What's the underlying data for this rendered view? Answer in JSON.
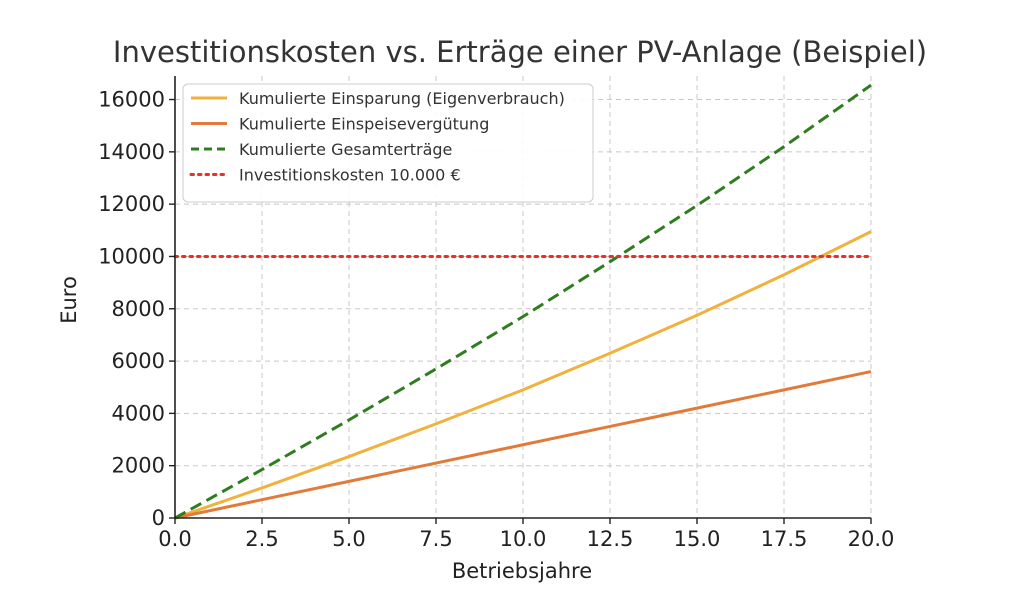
{
  "chart_data": {
    "type": "line",
    "title": "Investitionskosten vs. Erträge einer PV-Anlage (Beispiel)",
    "xlabel": "Betriebsjahre",
    "ylabel": "Euro",
    "xlim": [
      0,
      20
    ],
    "ylim": [
      0,
      16900
    ],
    "xticks": [
      0,
      2.5,
      5,
      7.5,
      10,
      12.5,
      15,
      17.5,
      20
    ],
    "xtick_labels": [
      "0.0",
      "2.5",
      "5.0",
      "7.5",
      "10.0",
      "12.5",
      "15.0",
      "17.5",
      "20.0"
    ],
    "yticks": [
      0,
      2000,
      4000,
      6000,
      8000,
      10000,
      12000,
      14000,
      16000
    ],
    "ytick_labels": [
      "0",
      "2000",
      "4000",
      "6000",
      "8000",
      "10000",
      "12000",
      "14000",
      "16000"
    ],
    "grid": true,
    "legend_position": "top-left",
    "x": [
      0,
      2.5,
      5,
      7.5,
      10,
      12.5,
      15,
      17.5,
      20
    ],
    "series": [
      {
        "name": "Kumulierte Einsparung (Eigenverbrauch)",
        "color": "#f1b13d",
        "style": "solid",
        "values": [
          0,
          1150,
          2350,
          3600,
          4900,
          6300,
          7750,
          9300,
          10950
        ]
      },
      {
        "name": "Kumulierte Einspeisevergütung",
        "color": "#e07b39",
        "style": "solid",
        "values": [
          0,
          700,
          1400,
          2100,
          2800,
          3500,
          4200,
          4900,
          5600
        ]
      },
      {
        "name": "Kumulierte Gesamterträge",
        "color": "#2e7d1e",
        "style": "dashed",
        "values": [
          0,
          1850,
          3750,
          5700,
          7700,
          9800,
          11950,
          14200,
          16550
        ]
      },
      {
        "name": "Investitionskosten 10.000 €",
        "color": "#e8302a",
        "style": "dotted",
        "values": [
          10000,
          10000,
          10000,
          10000,
          10000,
          10000,
          10000,
          10000,
          10000
        ]
      }
    ]
  }
}
